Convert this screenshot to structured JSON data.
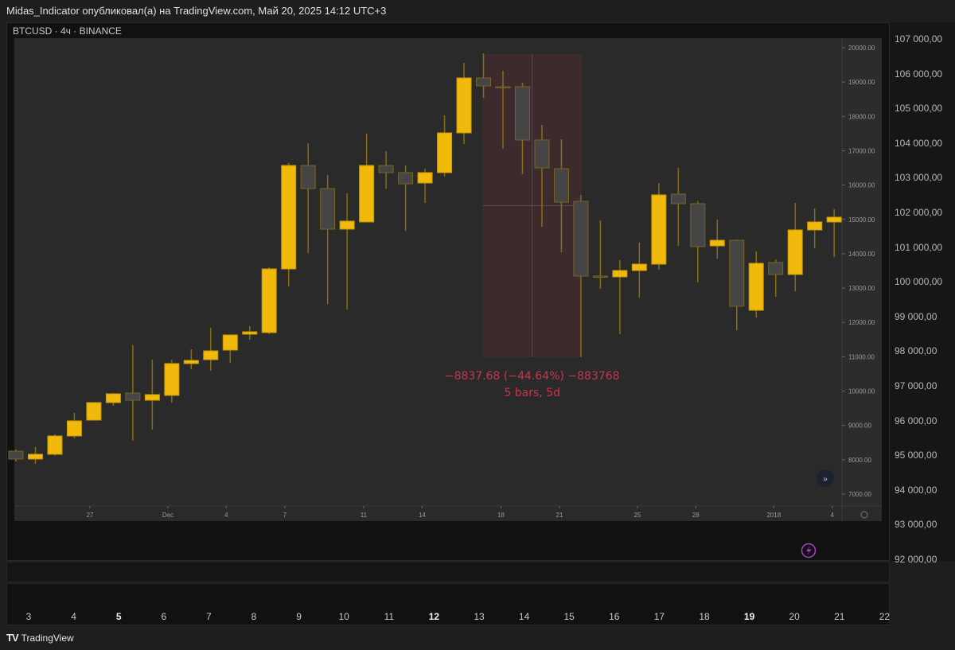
{
  "header": {
    "published_by": "Midas_Indicator опубликовал(а) на TradingView.com, Май 20, 2025 14:12 UTC+3",
    "symbol_line": "BTCUSD · 4ч · BINANCE"
  },
  "outer_price_axis": [
    "107 000,00",
    "106 000,00",
    "105 000,00",
    "104 000,00",
    "103 000,00",
    "102 000,00",
    "101 000,00",
    "100 000,00",
    "99 000,00",
    "98 000,00",
    "97 000,00",
    "96 000,00",
    "95 000,00",
    "94 000,00",
    "93 000,00",
    "92 000,00"
  ],
  "outer_time_axis": [
    {
      "label": "3",
      "bold": false
    },
    {
      "label": "4",
      "bold": false
    },
    {
      "label": "5",
      "bold": true
    },
    {
      "label": "6",
      "bold": false
    },
    {
      "label": "7",
      "bold": false
    },
    {
      "label": "8",
      "bold": false
    },
    {
      "label": "9",
      "bold": false
    },
    {
      "label": "10",
      "bold": false
    },
    {
      "label": "11",
      "bold": false
    },
    {
      "label": "12",
      "bold": true
    },
    {
      "label": "13",
      "bold": false
    },
    {
      "label": "14",
      "bold": false
    },
    {
      "label": "15",
      "bold": false
    },
    {
      "label": "16",
      "bold": false
    },
    {
      "label": "17",
      "bold": false
    },
    {
      "label": "18",
      "bold": false
    },
    {
      "label": "19",
      "bold": true
    },
    {
      "label": "20",
      "bold": false
    },
    {
      "label": "21",
      "bold": false
    },
    {
      "label": "22",
      "bold": false
    }
  ],
  "footer": {
    "brand": "TradingView"
  },
  "icons": {
    "lightning": "lightning-icon",
    "scroll_right": "double-chevron-right-icon",
    "settings": "gear-icon"
  },
  "colors": {
    "bull": "#f0b90b",
    "bear": "#454545",
    "wick": "#8a6d10",
    "measure_fill": "#3d2a2d",
    "measure_text": "#c8364c",
    "lightning": "#b03cc8"
  },
  "chart_data": {
    "type": "candlestick",
    "ylim": [
      6700,
      20200
    ],
    "yticks": [
      "20000.00",
      "19000.00",
      "18000.00",
      "17000.00",
      "16000.00",
      "15000.00",
      "14000.00",
      "13000.00",
      "12000.00",
      "11000.00",
      "10000.00",
      "9000.00",
      "8000.00",
      "7000.00"
    ],
    "xticks": [
      {
        "label": "27",
        "bar": 3.8
      },
      {
        "label": "Dec",
        "bar": 7.8
      },
      {
        "label": "4",
        "bar": 10.8
      },
      {
        "label": "7",
        "bar": 13.8
      },
      {
        "label": "11",
        "bar": 17.85
      },
      {
        "label": "14",
        "bar": 20.85
      },
      {
        "label": "18",
        "bar": 24.9
      },
      {
        "label": "21",
        "bar": 27.9
      },
      {
        "label": "25",
        "bar": 31.9
      },
      {
        "label": "28",
        "bar": 34.9
      },
      {
        "label": "2018",
        "bar": 38.9
      },
      {
        "label": "4",
        "bar": 41.9
      }
    ],
    "ohlc": [
      [
        8250,
        8296,
        7949,
        8019
      ],
      [
        8019,
        8366,
        7879,
        8158
      ],
      [
        8158,
        8737,
        8111,
        8691
      ],
      [
        8691,
        9363,
        8621,
        9131
      ],
      [
        9154,
        9664,
        9154,
        9664
      ],
      [
        9664,
        9942,
        9571,
        9919
      ],
      [
        9942,
        11333,
        8552,
        9733
      ],
      [
        9733,
        10915,
        8876,
        9896
      ],
      [
        9873,
        10915,
        9664,
        10800
      ],
      [
        10800,
        11217,
        10637,
        10892
      ],
      [
        10915,
        11842,
        10591,
        11170
      ],
      [
        11194,
        11634,
        10823,
        11634
      ],
      [
        11657,
        11889,
        11495,
        11726
      ],
      [
        11703,
        13604,
        11657,
        13557
      ],
      [
        13557,
        16640,
        13048,
        16570
      ],
      [
        16570,
        17219,
        14021,
        15898
      ],
      [
        15898,
        16292,
        12538,
        14716
      ],
      [
        14716,
        15759,
        12375,
        14948
      ],
      [
        14925,
        17497,
        14925,
        16570
      ],
      [
        16570,
        16987,
        15898,
        16362
      ],
      [
        16362,
        16570,
        14670,
        16037
      ],
      [
        16060,
        16477,
        15481,
        16362
      ],
      [
        16362,
        18030,
        16246,
        17520
      ],
      [
        17520,
        19560,
        17196,
        19119
      ],
      [
        19119,
        19838,
        18540,
        18888
      ],
      [
        18864,
        19328,
        17057,
        18860
      ],
      [
        18864,
        18980,
        16315,
        17312
      ],
      [
        17312,
        17752,
        14786,
        16501
      ],
      [
        16477,
        17335,
        14044,
        15504
      ],
      [
        15527,
        15713,
        10985,
        13349
      ],
      [
        13349,
        14971,
        12978,
        13340
      ],
      [
        13326,
        13812,
        11657,
        13511
      ],
      [
        13511,
        14322,
        12723,
        13696
      ],
      [
        13696,
        16060,
        13534,
        15713
      ],
      [
        15736,
        16501,
        14229,
        15458
      ],
      [
        15458,
        15527,
        13163,
        14206
      ],
      [
        14229,
        14994,
        13859,
        14392
      ],
      [
        14392,
        14415,
        11773,
        12468
      ],
      [
        12352,
        14067,
        12144,
        13720
      ],
      [
        13743,
        13835,
        12746,
        13395
      ],
      [
        13395,
        15481,
        12908,
        14693
      ],
      [
        14693,
        15319,
        14160,
        14925
      ],
      [
        14925,
        15296,
        13905,
        15064
      ]
    ],
    "measure": {
      "from_bar": 24,
      "to_bar": 29,
      "top": 19815,
      "bottom": 10985,
      "label_line1": "−8837.68 (−44.64%) −883768",
      "label_line2": "5 bars, 5d"
    }
  }
}
